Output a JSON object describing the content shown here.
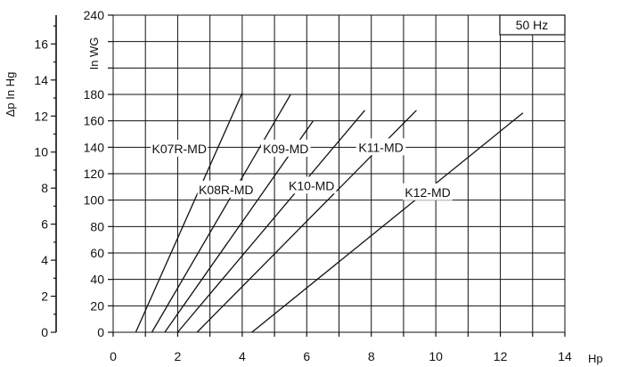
{
  "chart_data": {
    "type": "line",
    "xlabel": "Hp",
    "ylabel": "In WG",
    "secondary_ylabel": "Δp  In Hg",
    "badge": "50 Hz",
    "xlim": [
      0,
      14
    ],
    "ylim": [
      0,
      240
    ],
    "secondary_ylim": [
      0,
      17.6
    ],
    "x_ticks": [
      0,
      2,
      4,
      6,
      8,
      10,
      12,
      14
    ],
    "y_ticks": [
      0,
      20,
      40,
      60,
      80,
      100,
      120,
      140,
      160,
      180,
      200,
      220,
      240
    ],
    "y_tick_labels": [
      "0",
      "20",
      "40",
      "60",
      "80",
      "100",
      "120",
      "140",
      "160",
      "180",
      "",
      "",
      "240"
    ],
    "secondary_ticks": [
      0,
      2,
      4,
      6,
      8,
      10,
      12,
      14,
      16
    ],
    "grid": true,
    "series": [
      {
        "name": "K07R-MD",
        "x": [
          0.7,
          4.0
        ],
        "y": [
          0,
          181
        ],
        "label_at": [
          2.05,
          139
        ]
      },
      {
        "name": "K08R-MD",
        "x": [
          1.2,
          5.5
        ],
        "y": [
          0,
          180
        ],
        "label_at": [
          3.5,
          108
        ]
      },
      {
        "name": "K09-MD",
        "x": [
          1.6,
          6.2
        ],
        "y": [
          0,
          160
        ],
        "label_at": [
          5.35,
          139
        ]
      },
      {
        "name": "K10-MD",
        "x": [
          2.0,
          7.8
        ],
        "y": [
          0,
          168
        ],
        "label_at": [
          6.15,
          111
        ]
      },
      {
        "name": "K11-MD",
        "x": [
          2.6,
          9.4
        ],
        "y": [
          0,
          168
        ],
        "label_at": [
          8.3,
          140
        ]
      },
      {
        "name": "K12-MD",
        "x": [
          4.3,
          12.7
        ],
        "y": [
          0,
          166
        ],
        "label_at": [
          9.75,
          106
        ]
      }
    ]
  }
}
